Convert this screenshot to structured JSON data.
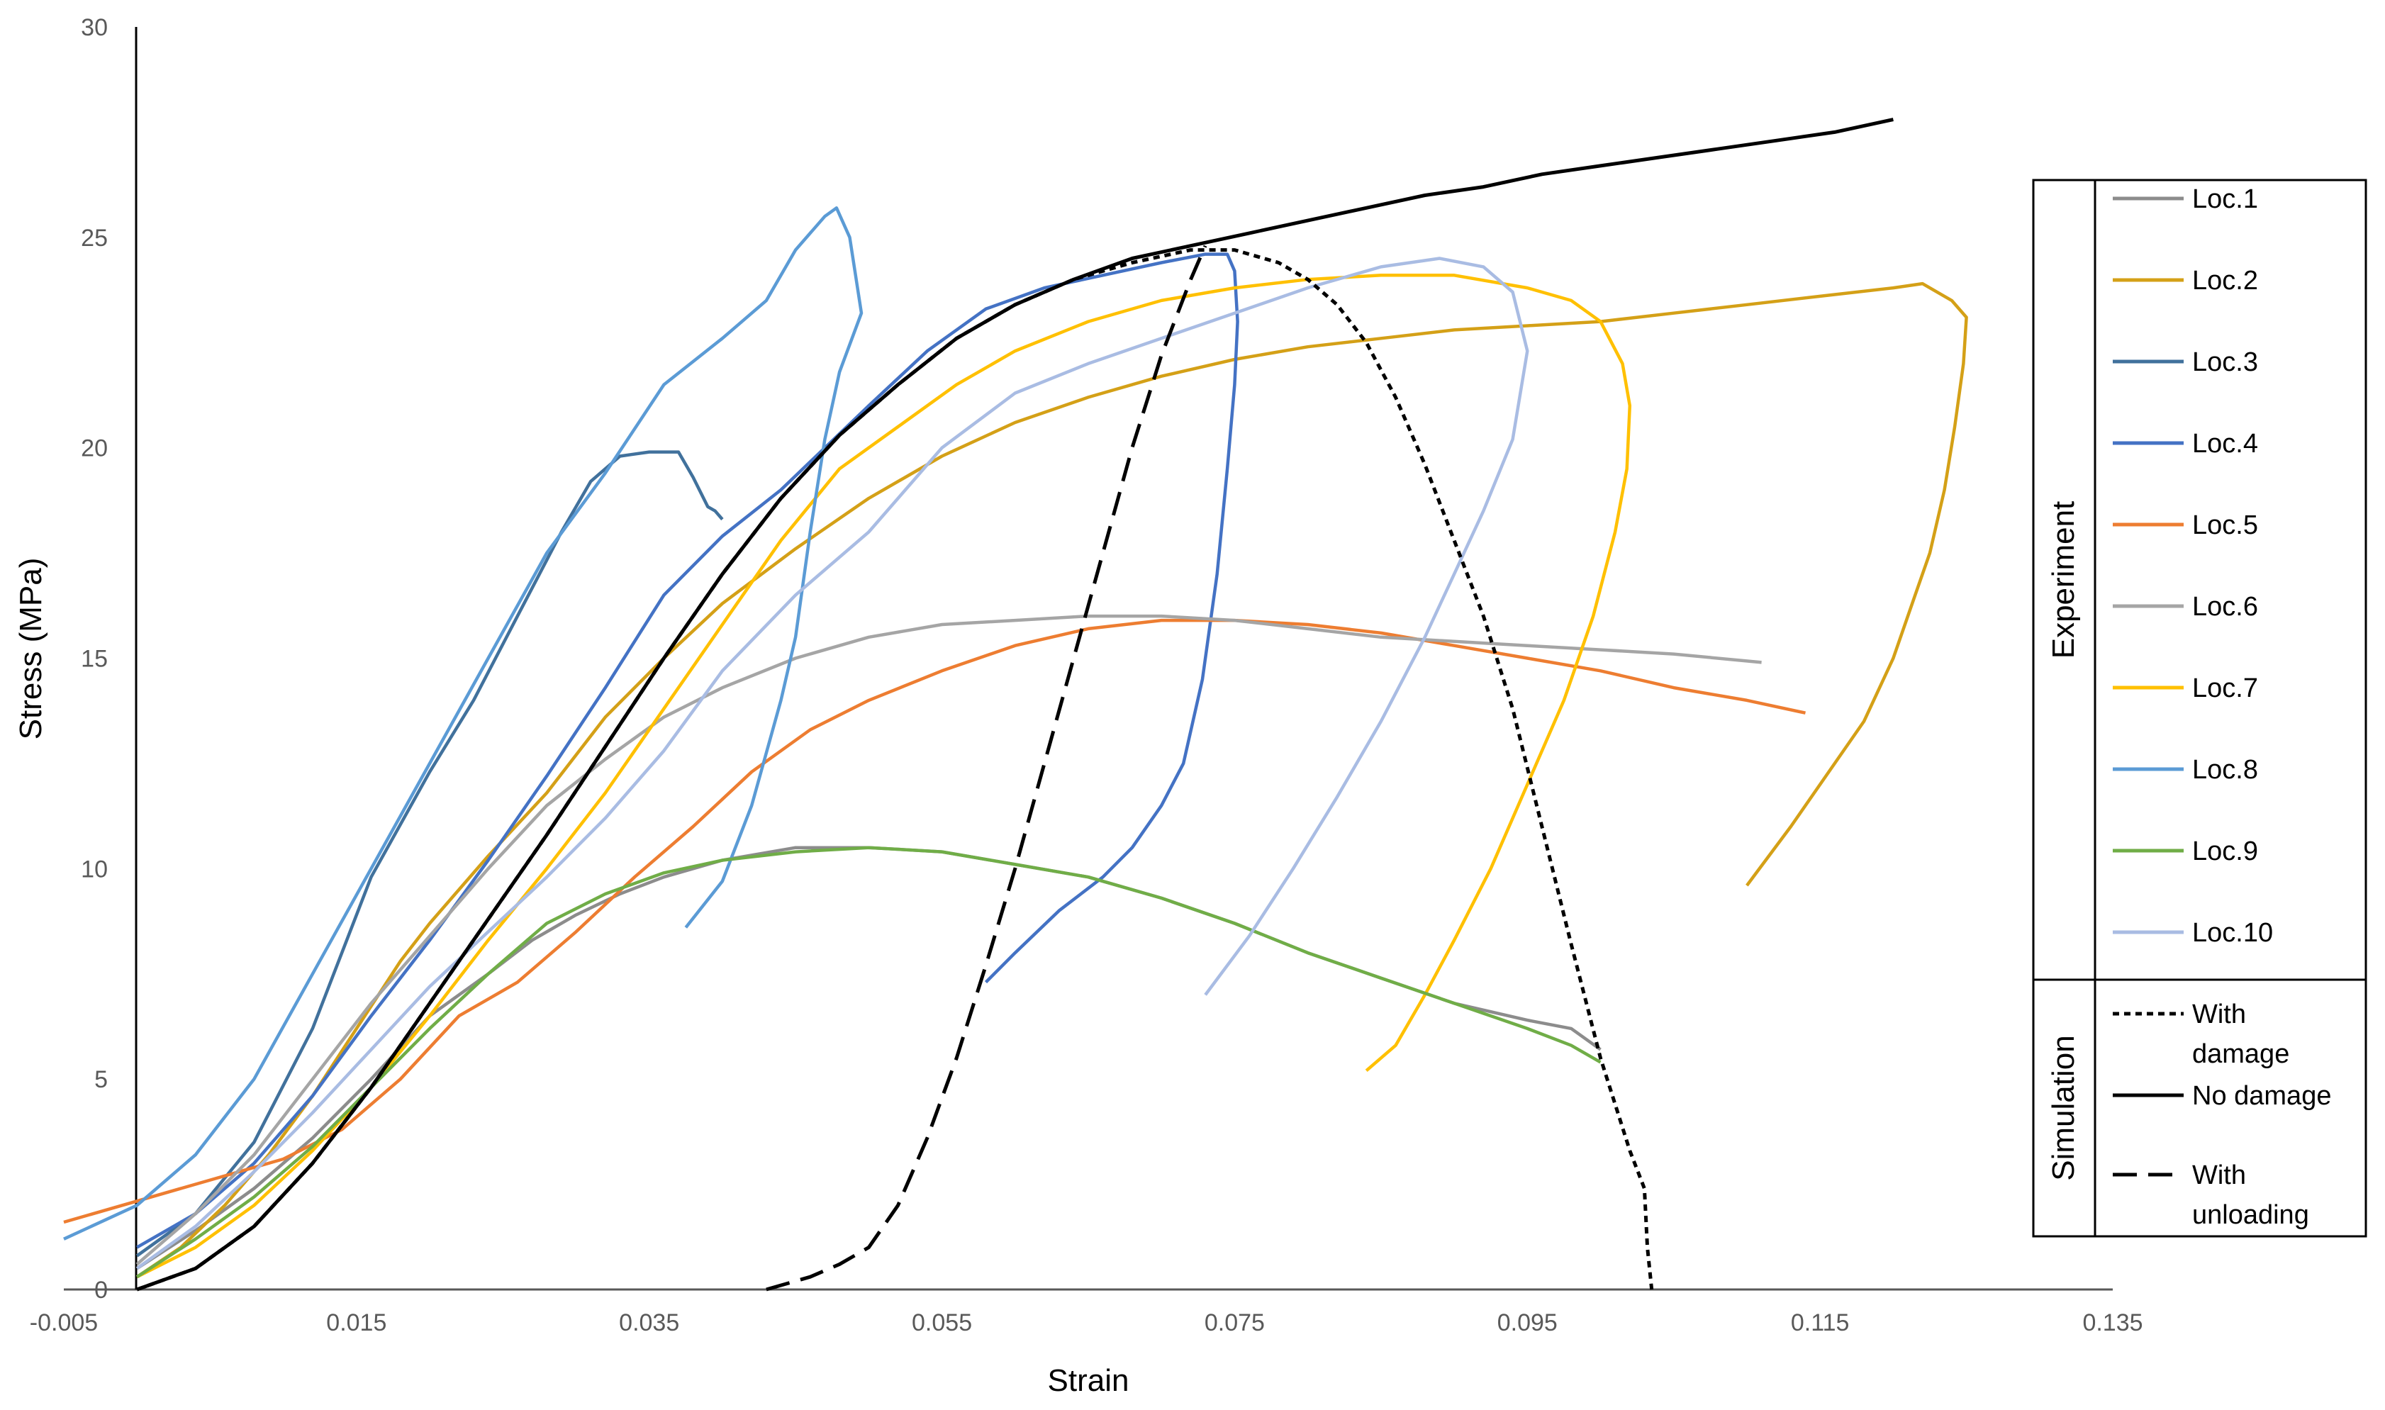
{
  "chart_data": {
    "type": "line",
    "xlabel": "Strain",
    "ylabel": "Stress (MPa)",
    "xlim": [
      -0.005,
      0.135
    ],
    "ylim": [
      0,
      30
    ],
    "x_tick_labels": [
      "-0.005",
      "0.015",
      "0.035",
      "0.055",
      "0.075",
      "0.095",
      "0.115",
      "0.135"
    ],
    "x_tick_values": [
      -0.005,
      0.015,
      0.035,
      0.055,
      0.075,
      0.095,
      0.115,
      0.135
    ],
    "y_tick_labels": [
      "0",
      "5",
      "10",
      "15",
      "20",
      "25",
      "30"
    ],
    "y_tick_values": [
      0,
      5,
      10,
      15,
      20,
      25,
      30
    ],
    "grid": false,
    "legend_position": "right",
    "legend_groups": [
      {
        "label": "Experiment",
        "series": [
          "Loc.1",
          "Loc.2",
          "Loc.3",
          "Loc.4",
          "Loc.5",
          "Loc.6",
          "Loc.7",
          "Loc.8",
          "Loc.9",
          "Loc.10"
        ]
      },
      {
        "label": "Simulation",
        "series": [
          "With damage",
          "No damage",
          "With unloading"
        ]
      }
    ],
    "series": [
      {
        "name": "Loc.1",
        "color": "#8c8c8c",
        "dash": "solid",
        "x": [
          0,
          0.004,
          0.008,
          0.012,
          0.016,
          0.02,
          0.024,
          0.027,
          0.03,
          0.033,
          0.036,
          0.04,
          0.045,
          0.05,
          0.055,
          0.06,
          0.065,
          0.07,
          0.075,
          0.08,
          0.085,
          0.09,
          0.095,
          0.098,
          0.1
        ],
        "y": [
          0.5,
          1.4,
          2.4,
          3.6,
          5.0,
          6.5,
          7.5,
          8.3,
          8.9,
          9.4,
          9.8,
          10.2,
          10.5,
          10.5,
          10.4,
          10.1,
          9.8,
          9.3,
          8.7,
          8.0,
          7.4,
          6.8,
          6.4,
          6.2,
          5.7
        ]
      },
      {
        "name": "Loc.2",
        "color": "#d4a017",
        "dash": "solid",
        "x": [
          0,
          0.003,
          0.006,
          0.009,
          0.012,
          0.015,
          0.018,
          0.02,
          0.024,
          0.028,
          0.032,
          0.036,
          0.04,
          0.045,
          0.05,
          0.055,
          0.06,
          0.065,
          0.07,
          0.075,
          0.08,
          0.085,
          0.09,
          0.095,
          0.1,
          0.105,
          0.11,
          0.115,
          0.12,
          0.122,
          0.124,
          0.125,
          0.1248,
          0.1242,
          0.1235,
          0.1225,
          0.1215,
          0.12,
          0.118,
          0.116,
          0.113,
          0.11
        ],
        "y": [
          0.3,
          1.0,
          2.0,
          3.2,
          4.6,
          6.2,
          7.8,
          8.7,
          10.3,
          11.8,
          13.6,
          15.0,
          16.3,
          17.6,
          18.8,
          19.8,
          20.6,
          21.2,
          21.7,
          22.1,
          22.4,
          22.6,
          22.8,
          22.9,
          23.0,
          23.2,
          23.4,
          23.6,
          23.8,
          23.9,
          23.5,
          23.1,
          22.0,
          20.5,
          19.0,
          17.5,
          16.5,
          15.0,
          13.5,
          12.5,
          11.0,
          9.6
        ]
      },
      {
        "name": "Loc.3",
        "color": "#41719c",
        "dash": "solid",
        "x": [
          0,
          0.004,
          0.008,
          0.012,
          0.016,
          0.02,
          0.023,
          0.026,
          0.029,
          0.031,
          0.033,
          0.035,
          0.037,
          0.038,
          0.039,
          0.0395,
          0.04
        ],
        "y": [
          0.8,
          1.8,
          3.5,
          6.2,
          9.8,
          12.3,
          14.0,
          16.0,
          18.0,
          19.2,
          19.8,
          19.9,
          19.9,
          19.3,
          18.6,
          18.5,
          18.3
        ]
      },
      {
        "name": "Loc.4",
        "color": "#4472c4",
        "dash": "solid",
        "x": [
          0,
          0.004,
          0.008,
          0.012,
          0.016,
          0.02,
          0.024,
          0.028,
          0.032,
          0.036,
          0.04,
          0.044,
          0.047,
          0.05,
          0.054,
          0.058,
          0.062,
          0.066,
          0.07,
          0.073,
          0.0745,
          0.075,
          0.0752,
          0.075,
          0.0745,
          0.0738,
          0.0728,
          0.0715,
          0.07,
          0.068,
          0.066,
          0.063,
          0.06,
          0.058
        ],
        "y": [
          1.0,
          1.8,
          3.0,
          4.6,
          6.5,
          8.3,
          10.2,
          12.2,
          14.3,
          16.5,
          17.9,
          19.0,
          20.0,
          21.0,
          22.3,
          23.3,
          23.8,
          24.1,
          24.4,
          24.6,
          24.6,
          24.2,
          23.0,
          21.5,
          19.5,
          17.0,
          14.5,
          12.5,
          11.5,
          10.5,
          9.8,
          9.0,
          8.0,
          7.3
        ]
      },
      {
        "name": "Loc.5",
        "color": "#ed7d31",
        "dash": "solid",
        "x": [
          -0.005,
          0.0,
          0.005,
          0.01,
          0.014,
          0.018,
          0.022,
          0.026,
          0.03,
          0.034,
          0.038,
          0.042,
          0.046,
          0.05,
          0.055,
          0.06,
          0.065,
          0.07,
          0.075,
          0.08,
          0.085,
          0.09,
          0.095,
          0.1,
          0.105,
          0.11,
          0.114
        ],
        "y": [
          1.6,
          2.1,
          2.6,
          3.1,
          3.8,
          5.0,
          6.5,
          7.3,
          8.5,
          9.8,
          11.0,
          12.3,
          13.3,
          14.0,
          14.7,
          15.3,
          15.7,
          15.9,
          15.9,
          15.8,
          15.6,
          15.3,
          15.0,
          14.7,
          14.3,
          14.0,
          13.7
        ]
      },
      {
        "name": "Loc.6",
        "color": "#a5a5a5",
        "dash": "solid",
        "x": [
          0,
          0.004,
          0.008,
          0.012,
          0.016,
          0.02,
          0.024,
          0.028,
          0.032,
          0.036,
          0.04,
          0.045,
          0.05,
          0.055,
          0.06,
          0.065,
          0.07,
          0.075,
          0.08,
          0.085,
          0.09,
          0.095,
          0.1,
          0.105,
          0.111
        ],
        "y": [
          0.6,
          1.8,
          3.2,
          5.0,
          6.8,
          8.4,
          10.0,
          11.5,
          12.6,
          13.6,
          14.3,
          15.0,
          15.5,
          15.8,
          15.9,
          16.0,
          16.0,
          15.9,
          15.7,
          15.5,
          15.4,
          15.3,
          15.2,
          15.1,
          14.9
        ]
      },
      {
        "name": "Loc.7",
        "color": "#ffc000",
        "dash": "solid",
        "x": [
          0,
          0.004,
          0.008,
          0.012,
          0.016,
          0.02,
          0.024,
          0.028,
          0.032,
          0.036,
          0.04,
          0.044,
          0.048,
          0.052,
          0.056,
          0.06,
          0.065,
          0.07,
          0.075,
          0.08,
          0.085,
          0.09,
          0.095,
          0.098,
          0.1,
          0.1015,
          0.102,
          0.1018,
          0.101,
          0.0995,
          0.0975,
          0.095,
          0.0925,
          0.09,
          0.088,
          0.086,
          0.084
        ],
        "y": [
          0.3,
          1.0,
          2.0,
          3.3,
          4.8,
          6.5,
          8.3,
          10.0,
          11.8,
          13.8,
          15.8,
          17.8,
          19.5,
          20.5,
          21.5,
          22.3,
          23.0,
          23.5,
          23.8,
          24.0,
          24.1,
          24.1,
          23.8,
          23.5,
          23.0,
          22.0,
          21.0,
          19.5,
          18.0,
          16.0,
          14.0,
          12.0,
          10.0,
          8.3,
          7.0,
          5.8,
          5.2
        ]
      },
      {
        "name": "Loc.8",
        "color": "#5b9bd5",
        "dash": "solid",
        "x": [
          -0.005,
          0.0,
          0.004,
          0.008,
          0.012,
          0.016,
          0.02,
          0.024,
          0.028,
          0.032,
          0.036,
          0.04,
          0.043,
          0.045,
          0.047,
          0.0478,
          0.0487,
          0.0495,
          0.048,
          0.047,
          0.046,
          0.045,
          0.044,
          0.042,
          0.04,
          0.0375
        ],
        "y": [
          1.2,
          2.0,
          3.2,
          5.0,
          7.5,
          10.0,
          12.5,
          15.0,
          17.5,
          19.4,
          21.5,
          22.6,
          23.5,
          24.7,
          25.5,
          25.7,
          25.0,
          23.2,
          21.8,
          20.2,
          18.0,
          15.5,
          14.0,
          11.5,
          9.7,
          8.6
        ]
      },
      {
        "name": "Loc.9",
        "color": "#70ad47",
        "dash": "solid",
        "x": [
          0,
          0.004,
          0.008,
          0.012,
          0.016,
          0.02,
          0.024,
          0.028,
          0.032,
          0.036,
          0.04,
          0.045,
          0.05,
          0.055,
          0.06,
          0.065,
          0.07,
          0.075,
          0.08,
          0.085,
          0.09,
          0.095,
          0.098,
          0.1
        ],
        "y": [
          0.3,
          1.2,
          2.2,
          3.4,
          4.8,
          6.2,
          7.5,
          8.7,
          9.4,
          9.9,
          10.2,
          10.4,
          10.5,
          10.4,
          10.1,
          9.8,
          9.3,
          8.7,
          8.0,
          7.4,
          6.8,
          6.2,
          5.8,
          5.4
        ]
      },
      {
        "name": "Loc.10",
        "color": "#a9bce3",
        "dash": "solid",
        "x": [
          0,
          0.004,
          0.008,
          0.012,
          0.016,
          0.02,
          0.024,
          0.028,
          0.032,
          0.036,
          0.04,
          0.045,
          0.05,
          0.055,
          0.06,
          0.065,
          0.07,
          0.075,
          0.08,
          0.085,
          0.089,
          0.092,
          0.094,
          0.095,
          0.094,
          0.092,
          0.09,
          0.088,
          0.085,
          0.082,
          0.079,
          0.076,
          0.073
        ],
        "y": [
          0.5,
          1.5,
          2.8,
          4.2,
          5.7,
          7.2,
          8.5,
          9.8,
          11.2,
          12.8,
          14.7,
          16.5,
          18.0,
          20.0,
          21.3,
          22.0,
          22.6,
          23.2,
          23.8,
          24.3,
          24.5,
          24.3,
          23.7,
          22.3,
          20.2,
          18.5,
          17.0,
          15.5,
          13.5,
          11.7,
          10.0,
          8.4,
          7.0
        ]
      },
      {
        "name": "With damage",
        "color": "#000000",
        "dash": "dotted",
        "x": [
          0,
          0.004,
          0.008,
          0.012,
          0.016,
          0.02,
          0.024,
          0.028,
          0.032,
          0.036,
          0.04,
          0.044,
          0.048,
          0.052,
          0.056,
          0.06,
          0.064,
          0.068,
          0.072,
          0.075,
          0.078,
          0.08,
          0.082,
          0.084,
          0.086,
          0.088,
          0.09,
          0.092,
          0.094,
          0.096,
          0.098,
          0.1,
          0.102,
          0.103,
          0.1032,
          0.1035
        ],
        "y": [
          0,
          0.5,
          1.5,
          3.0,
          4.8,
          6.8,
          8.8,
          10.8,
          12.9,
          15.0,
          17.0,
          18.8,
          20.3,
          21.5,
          22.6,
          23.4,
          24.0,
          24.4,
          24.7,
          24.7,
          24.4,
          24.0,
          23.4,
          22.5,
          21.2,
          19.6,
          17.8,
          16.0,
          13.8,
          11.0,
          8.2,
          5.5,
          3.3,
          2.4,
          1.0,
          0.0
        ]
      },
      {
        "name": "No damage",
        "color": "#000000",
        "dash": "solid",
        "x": [
          0,
          0.004,
          0.008,
          0.012,
          0.016,
          0.02,
          0.024,
          0.028,
          0.032,
          0.036,
          0.04,
          0.044,
          0.048,
          0.052,
          0.056,
          0.06,
          0.064,
          0.068,
          0.072,
          0.076,
          0.08,
          0.084,
          0.088,
          0.092,
          0.096,
          0.1,
          0.104,
          0.108,
          0.112,
          0.116,
          0.12
        ],
        "y": [
          0,
          0.5,
          1.5,
          3.0,
          4.8,
          6.8,
          8.8,
          10.8,
          12.9,
          15.0,
          17.0,
          18.8,
          20.3,
          21.5,
          22.6,
          23.4,
          24.0,
          24.5,
          24.8,
          25.1,
          25.4,
          25.7,
          26.0,
          26.2,
          26.5,
          26.7,
          26.9,
          27.1,
          27.3,
          27.5,
          27.8
        ]
      },
      {
        "name": "With unloading",
        "color": "#000000",
        "dash": "dashed",
        "x": [
          0.043,
          0.046,
          0.048,
          0.05,
          0.052,
          0.054,
          0.056,
          0.058,
          0.06,
          0.062,
          0.064,
          0.066,
          0.068,
          0.07,
          0.072,
          0.073
        ],
        "y": [
          0.0,
          0.3,
          0.6,
          1.0,
          2.0,
          3.6,
          5.5,
          7.7,
          10.0,
          12.5,
          15.0,
          17.5,
          20.0,
          22.2,
          24.0,
          24.8
        ]
      }
    ]
  }
}
